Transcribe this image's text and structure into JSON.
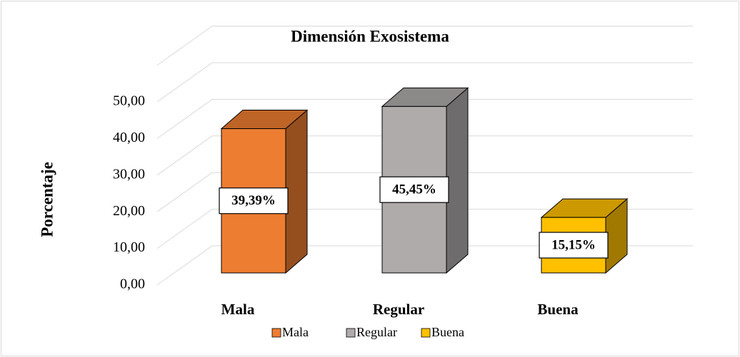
{
  "chart_data": {
    "type": "bar3d",
    "title": "Dimensión Exosistema",
    "y_label": "Porcentaje",
    "categories": [
      "Mala",
      "Regular",
      "Buena"
    ],
    "series": [
      {
        "name": "Mala",
        "color": "#ED7D31",
        "values": [
          39.39,
          null,
          null
        ],
        "value_labels": [
          "39,39%",
          null,
          null
        ]
      },
      {
        "name": "Regular",
        "color": "#AFABAB",
        "values": [
          null,
          45.45,
          null
        ],
        "value_labels": [
          null,
          "45,45%",
          null
        ]
      },
      {
        "name": "Buena",
        "color": "#FFC000",
        "values": [
          null,
          null,
          15.15
        ],
        "value_labels": [
          null,
          null,
          "15,15%"
        ]
      }
    ],
    "ylim": [
      0,
      60
    ],
    "yticks": [
      {
        "value": 0,
        "label": "0,00"
      },
      {
        "value": 10,
        "label": "10,00"
      },
      {
        "value": 20,
        "label": "20,00"
      },
      {
        "value": 30,
        "label": "30,00"
      },
      {
        "value": 40,
        "label": "40,00"
      },
      {
        "value": 50,
        "label": "50,00"
      }
    ],
    "grid": true,
    "legend": "bottom"
  }
}
